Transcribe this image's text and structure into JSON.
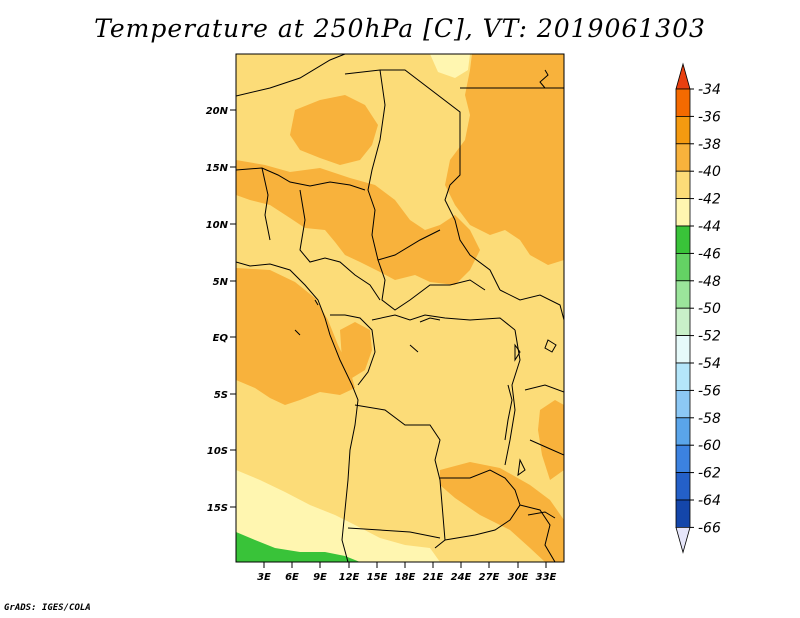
{
  "title": "Temperature at 250hPa [C], VT: 2019061303",
  "footer": "GrADS: IGES/COLA",
  "chart_data": {
    "type": "heatmap",
    "title": "Temperature at 250hPa [C], VT: 2019061303",
    "x_ticks": [
      "3E",
      "6E",
      "9E",
      "12E",
      "15E",
      "18E",
      "21E",
      "24E",
      "27E",
      "30E",
      "33E"
    ],
    "y_ticks": [
      "20N",
      "15N",
      "10N",
      "5N",
      "EQ",
      "5S",
      "10S",
      "15S"
    ],
    "x_range_deg_east": [
      0,
      35
    ],
    "y_range_deg": [
      -20,
      25
    ],
    "colorbar": {
      "orientation": "vertical",
      "placement": "right",
      "labels": [
        "-34",
        "-36",
        "-38",
        "-40",
        "-42",
        "-44",
        "-46",
        "-48",
        "-50",
        "-52",
        "-54",
        "-56",
        "-58",
        "-60",
        "-62",
        "-64",
        "-66"
      ],
      "colors": [
        "#e84010",
        "#f56a00",
        "#f59a10",
        "#f8b23c",
        "#fcdc78",
        "#fff6b0",
        "#39c339",
        "#64d264",
        "#9be59b",
        "#c8f0c8",
        "#e6fafa",
        "#b4e6fa",
        "#8cc8f5",
        "#5aa5ea",
        "#3c82e0",
        "#2460c8",
        "#1446aa",
        "#0c1e78",
        "#e6e6fa"
      ]
    },
    "fields": {
      "ocean_minus_40": "#fcdc78",
      "minus_38_band": "#f8b23c",
      "minus_42_band": "#fff6b0",
      "minus_44_band": "#39c339"
    }
  }
}
